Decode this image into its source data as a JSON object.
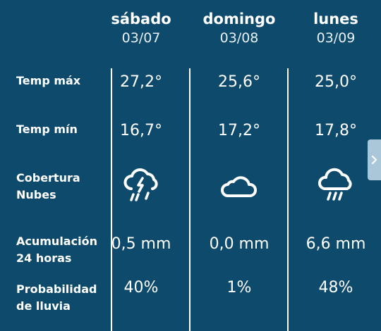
{
  "days": [
    {
      "name": "sábado",
      "date": "03/07",
      "temp_max": "27,2°",
      "temp_min": "16,7°",
      "cloud_icon": "thunderstorm-icon",
      "accumulation": "0,5 mm",
      "rain_probability": "40%"
    },
    {
      "name": "domingo",
      "date": "03/08",
      "temp_max": "25,6°",
      "temp_min": "17,2°",
      "cloud_icon": "cloud-icon",
      "accumulation": "0,0 mm",
      "rain_probability": "1%"
    },
    {
      "name": "lunes",
      "date": "03/09",
      "temp_max": "25,0°",
      "temp_min": "17,8°",
      "cloud_icon": "rain-cloud-icon",
      "accumulation": "6,6 mm",
      "rain_probability": "48%"
    }
  ],
  "labels": {
    "temp_max": "Temp máx",
    "temp_min": "Temp mín",
    "cloud_line1": "Cobertura",
    "cloud_line2": "Nubes",
    "acc_line1": "Acumulación",
    "acc_line2": "24 horas",
    "prob_line1": "Probabilidad",
    "prob_line2": "de lluvia"
  },
  "next_button": {
    "icon": "chevron-right-icon"
  },
  "colors": {
    "background": "#0e4a6b",
    "text": "#ffffff",
    "tab": "#a9c7d8"
  }
}
